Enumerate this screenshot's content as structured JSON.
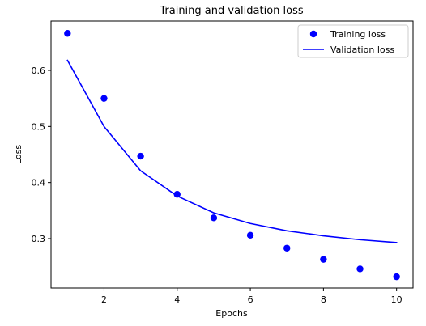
{
  "chart_data": {
    "type": "line",
    "title": "Training and validation loss",
    "xlabel": "Epochs",
    "ylabel": "Loss",
    "xlim": [
      0.55,
      10.45
    ],
    "ylim": [
      0.212,
      0.688
    ],
    "xticks": [
      2,
      4,
      6,
      8,
      10
    ],
    "xtick_labels": [
      "2",
      "4",
      "6",
      "8",
      "10"
    ],
    "yticks": [
      0.3,
      0.4,
      0.5,
      0.6
    ],
    "ytick_labels": [
      "0.3",
      "0.4",
      "0.5",
      "0.6"
    ],
    "grid": false,
    "legend_position": "top-right",
    "x": [
      1,
      2,
      3,
      4,
      5,
      6,
      7,
      8,
      9,
      10
    ],
    "series": [
      {
        "name": "Training loss",
        "style": "markers",
        "color": "#0000ff",
        "values": [
          0.666,
          0.55,
          0.447,
          0.379,
          0.337,
          0.306,
          0.283,
          0.263,
          0.246,
          0.232
        ]
      },
      {
        "name": "Validation loss",
        "style": "line",
        "color": "#0000ff",
        "values": [
          0.618,
          0.5,
          0.421,
          0.376,
          0.346,
          0.327,
          0.314,
          0.305,
          0.298,
          0.293
        ]
      }
    ]
  }
}
